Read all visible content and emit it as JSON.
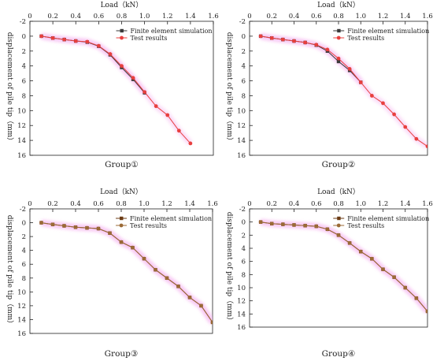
{
  "figure": {
    "colors": {
      "fe_dark": "#3a3a3a",
      "test_red": "#e8403f",
      "brown_fe": "#6b3b14",
      "brown_test": "#9b6a36",
      "glow": "#f6b8f0",
      "axis": "#222222"
    }
  },
  "chart_data": [
    {
      "type": "line",
      "caption": "Group①",
      "xlabel": "Load（kN）",
      "ylabel": "displacement of pile tip（mm）",
      "xlim": [
        0,
        1.6
      ],
      "ylim": [
        -2,
        16
      ],
      "y_inverted": true,
      "x_axis_position": "top",
      "grid": false,
      "legend_position": "top-right",
      "xticks": [
        "0",
        "0.2",
        "0.4",
        "0.6",
        "0.8",
        "1.0",
        "1.2",
        "1.4",
        "1.6"
      ],
      "yticks": [
        "-2",
        "0",
        "2",
        "4",
        "6",
        "8",
        "10",
        "12",
        "14",
        "16"
      ],
      "series": [
        {
          "name": "Finite element simulation",
          "color": "#3a3a3a",
          "marker": "square",
          "x": [
            0.1,
            0.2,
            0.3,
            0.4,
            0.5,
            0.6,
            0.7,
            0.8,
            0.9,
            1.0
          ],
          "y": [
            0,
            0.25,
            0.45,
            0.65,
            0.8,
            1.35,
            2.5,
            4.2,
            5.8,
            7.6
          ]
        },
        {
          "name": "Test results",
          "color": "#e8403f",
          "marker": "circle",
          "x": [
            0.1,
            0.2,
            0.3,
            0.4,
            0.5,
            0.6,
            0.7,
            0.8,
            0.9,
            1.0,
            1.1,
            1.2,
            1.3,
            1.4
          ],
          "y": [
            0,
            0.25,
            0.45,
            0.65,
            0.75,
            1.3,
            2.4,
            4.0,
            5.6,
            7.5,
            9.4,
            10.6,
            12.7,
            14.4
          ]
        }
      ]
    },
    {
      "type": "line",
      "caption": "Group②",
      "xlabel": "Load（kN）",
      "ylabel": "displacement of pile tip（mm）",
      "xlim": [
        0,
        1.6
      ],
      "ylim": [
        -2,
        16
      ],
      "y_inverted": true,
      "x_axis_position": "top",
      "grid": false,
      "legend_position": "top-right",
      "xticks": [
        "0",
        "0.2",
        "0.4",
        "0.6",
        "0.8",
        "1.0",
        "1.2",
        "1.4",
        "1.6"
      ],
      "yticks": [
        "-2",
        "0",
        "2",
        "4",
        "6",
        "8",
        "10",
        "12",
        "14",
        "16"
      ],
      "series": [
        {
          "name": "Finite element simulation",
          "color": "#3a3a3a",
          "marker": "square",
          "x": [
            0.1,
            0.2,
            0.3,
            0.4,
            0.5,
            0.6,
            0.7,
            0.8,
            0.9,
            1.0
          ],
          "y": [
            0,
            0.25,
            0.45,
            0.65,
            0.85,
            1.2,
            2.0,
            3.4,
            4.6,
            6.2
          ]
        },
        {
          "name": "Test results",
          "color": "#e8403f",
          "marker": "circle",
          "x": [
            0.1,
            0.2,
            0.3,
            0.4,
            0.5,
            0.6,
            0.7,
            0.8,
            0.9,
            1.0,
            1.1,
            1.2,
            1.3,
            1.4,
            1.5,
            1.6
          ],
          "y": [
            0,
            0.25,
            0.45,
            0.65,
            0.85,
            1.15,
            1.8,
            3.0,
            4.4,
            6.2,
            8.0,
            9.0,
            10.5,
            12.2,
            13.8,
            14.8
          ]
        }
      ]
    },
    {
      "type": "line",
      "caption": "Group③",
      "xlabel": "Load（kN）",
      "ylabel": "displacement of pile tip（mm）",
      "xlim": [
        0,
        1.6
      ],
      "ylim": [
        -2,
        16
      ],
      "y_inverted": true,
      "x_axis_position": "top",
      "grid": false,
      "legend_position": "top-right",
      "xticks": [
        "0",
        "0.2",
        "0.4",
        "0.6",
        "0.8",
        "1.0",
        "1.2",
        "1.4",
        "1.6"
      ],
      "yticks": [
        "-2",
        "0",
        "2",
        "4",
        "6",
        "8",
        "10",
        "12",
        "14",
        "16"
      ],
      "series": [
        {
          "name": "Finite element simulation",
          "color": "#6b3b14",
          "marker": "square",
          "x": [
            0.1,
            0.2,
            0.3,
            0.4,
            0.5,
            0.6,
            0.7,
            0.8,
            0.9,
            1.0,
            1.1,
            1.2,
            1.3,
            1.4,
            1.5,
            1.6
          ],
          "y": [
            0,
            0.25,
            0.45,
            0.65,
            0.75,
            0.85,
            1.5,
            2.8,
            3.6,
            5.2,
            6.8,
            8.0,
            9.2,
            10.8,
            12.0,
            14.4
          ]
        },
        {
          "name": "Test results",
          "color": "#9b6a36",
          "marker": "circle",
          "x": [
            0.1,
            0.2,
            0.3,
            0.4,
            0.5,
            0.6,
            0.7,
            0.8,
            0.9,
            1.0,
            1.1,
            1.2,
            1.3,
            1.4,
            1.5,
            1.6
          ],
          "y": [
            0,
            0.25,
            0.45,
            0.65,
            0.75,
            0.85,
            1.5,
            2.8,
            3.6,
            5.2,
            6.8,
            8.0,
            9.2,
            10.8,
            12.0,
            14.4
          ]
        }
      ]
    },
    {
      "type": "line",
      "caption": "Group④",
      "xlabel": "Load（kN）",
      "ylabel": "displacement of pile tip（mm）",
      "xlim": [
        0,
        1.6
      ],
      "ylim": [
        -2,
        16
      ],
      "y_inverted": true,
      "x_axis_position": "top",
      "grid": false,
      "legend_position": "top-right",
      "xticks": [
        "0",
        "0.2",
        "0.4",
        "0.6",
        "0.8",
        "1.0",
        "1.2",
        "1.4",
        "1.6"
      ],
      "yticks": [
        "-2",
        "0",
        "2",
        "4",
        "6",
        "8",
        "10",
        "12",
        "14",
        "16"
      ],
      "series": [
        {
          "name": "Finite element simulation",
          "color": "#6b3b14",
          "marker": "square",
          "x": [
            0.1,
            0.2,
            0.3,
            0.4,
            0.5,
            0.6,
            0.7,
            0.8,
            0.9,
            1.0,
            1.1,
            1.2,
            1.3,
            1.4,
            1.5,
            1.6
          ],
          "y": [
            0,
            0.25,
            0.35,
            0.45,
            0.55,
            0.65,
            1.1,
            2.0,
            3.2,
            4.5,
            5.6,
            7.2,
            8.4,
            10.0,
            11.6,
            13.6
          ]
        },
        {
          "name": "Test results",
          "color": "#9b6a36",
          "marker": "circle",
          "x": [
            0.1,
            0.2,
            0.3,
            0.4,
            0.5,
            0.6,
            0.7,
            0.8,
            0.9,
            1.0,
            1.1,
            1.2,
            1.3,
            1.4,
            1.5,
            1.6
          ],
          "y": [
            0,
            0.25,
            0.35,
            0.45,
            0.55,
            0.65,
            1.1,
            2.0,
            3.2,
            4.5,
            5.6,
            7.2,
            8.4,
            10.0,
            11.6,
            13.6
          ]
        }
      ]
    }
  ]
}
